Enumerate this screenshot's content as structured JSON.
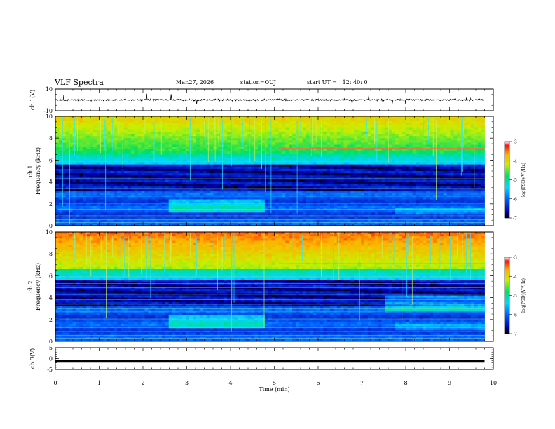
{
  "header": {
    "title": "VLF Spectra",
    "date": "Mar.27, 2026",
    "station": "station=OUJ",
    "start_ut": "start UT =   12: 40: 0"
  },
  "chart_data": [
    {
      "type": "line",
      "panel": "ch1-waveform",
      "ylabel": "ch.1(V)",
      "ylim": [
        -10,
        10
      ],
      "yticks": [
        "10",
        "-10"
      ],
      "xlim": [
        0,
        10
      ],
      "baseline": 0,
      "trace_color": "#000000"
    },
    {
      "type": "heatmap",
      "panel": "ch1-spectrogram",
      "ylabel_line1": "ch.1",
      "ylabel_line2": "Frequency (kHz)",
      "ylim": [
        0,
        10
      ],
      "yticks": [
        "0",
        "2",
        "4",
        "6",
        "8",
        "10"
      ],
      "xlim": [
        0,
        10
      ],
      "data_end_min": 9.8,
      "colorbar": {
        "label": "log(PSD)(V²/Hz)",
        "range": [
          -7,
          -3
        ],
        "ticks": [
          "-3",
          "-4",
          "-5",
          "-6",
          "-7"
        ]
      }
    },
    {
      "type": "heatmap",
      "panel": "ch2-spectrogram",
      "ylabel_line1": "ch.2",
      "ylabel_line2": "Frequency (kHz)",
      "ylim": [
        0,
        10
      ],
      "yticks": [
        "0",
        "2",
        "4",
        "6",
        "8",
        "10"
      ],
      "xlim": [
        0,
        10
      ],
      "data_end_min": 9.8,
      "colorbar": {
        "label": "log(PSD)(V²/Hz)",
        "range": [
          -7,
          -3
        ],
        "ticks": [
          "-3",
          "-4",
          "-5",
          "-6",
          "-7"
        ]
      }
    },
    {
      "type": "line",
      "panel": "ch3-waveform",
      "ylabel": "ch.3(V)",
      "ylim": [
        -5,
        5
      ],
      "yticks": [
        "5",
        "0",
        "-5"
      ],
      "xlim": [
        0,
        10
      ],
      "baseline": -1.2,
      "trace_color": "#000000",
      "xlabel": "Time (min)",
      "xticks": [
        "0",
        "1",
        "2",
        "3",
        "4",
        "5",
        "6",
        "7",
        "8",
        "9",
        "10"
      ]
    }
  ]
}
